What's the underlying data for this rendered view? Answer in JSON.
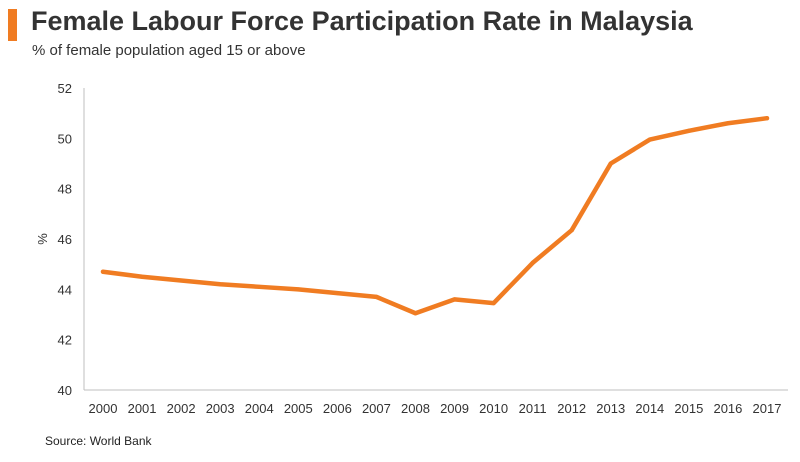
{
  "chart_data": {
    "type": "line",
    "title": "Female Labour Force Participation Rate in Malaysia",
    "subtitle": "% of female population aged 15 or above",
    "xlabel": "",
    "ylabel": "%",
    "ylim": [
      40,
      52
    ],
    "yticks": [
      "40",
      "42",
      "44",
      "46",
      "48",
      "50",
      "52"
    ],
    "categories": [
      "2000",
      "2001",
      "2002",
      "2003",
      "2004",
      "2005",
      "2006",
      "2007",
      "2008",
      "2009",
      "2010",
      "2011",
      "2012",
      "2013",
      "2014",
      "2015",
      "2016",
      "2017"
    ],
    "series": [
      {
        "name": "Female Labour Force Participation Rate",
        "color": "#f07c22",
        "values": [
          44.7,
          44.5,
          44.35,
          44.2,
          44.1,
          44.0,
          43.85,
          43.7,
          43.05,
          43.6,
          43.45,
          45.05,
          46.35,
          49.0,
          49.95,
          50.3,
          50.6,
          50.8
        ]
      }
    ],
    "grid": false,
    "source": "Source: World Bank"
  }
}
